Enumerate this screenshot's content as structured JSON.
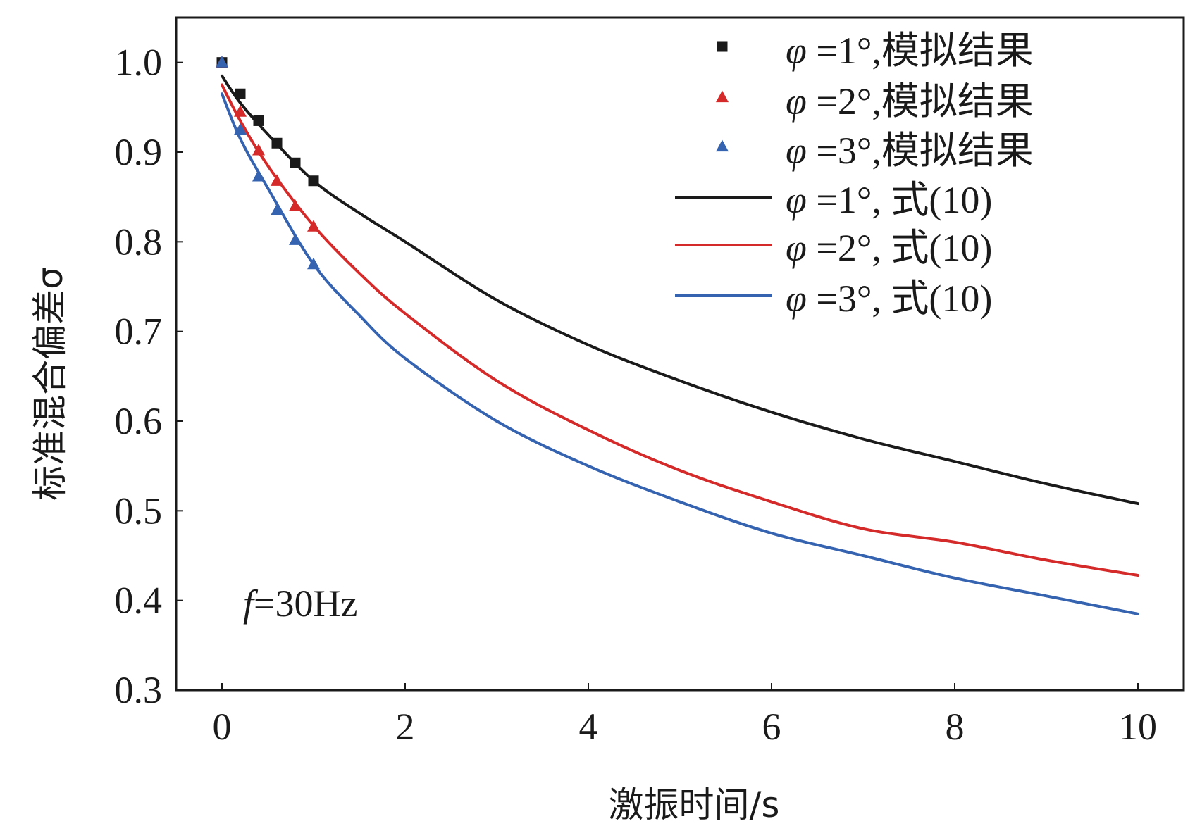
{
  "chart_data": {
    "type": "line",
    "title": "",
    "xlabel": "激振时间/s",
    "ylabel": "标准混合偏差σ",
    "xlim": [
      -0.5,
      10.5
    ],
    "ylim": [
      0.3,
      1.05
    ],
    "x_ticks": [
      0,
      2,
      4,
      6,
      8,
      10
    ],
    "x_tick_labels": [
      "0",
      "2",
      "4",
      "6",
      "8",
      "10"
    ],
    "y_ticks": [
      0.3,
      0.4,
      0.5,
      0.6,
      0.7,
      0.8,
      0.9,
      1.0
    ],
    "y_tick_labels": [
      "0.3",
      "0.4",
      "0.5",
      "0.6",
      "0.7",
      "0.8",
      "0.9",
      "1.0"
    ],
    "grid": false,
    "legend_position": "top-right",
    "annotation": {
      "symbol": "f",
      "text": "=30Hz"
    },
    "series": [
      {
        "name": "φ =1°,模拟结果",
        "symbol": "φ",
        "label": " =1°,模拟结果",
        "kind": "scatter",
        "marker": "square",
        "color": "#1a1a1a",
        "x": [
          0,
          0.2,
          0.4,
          0.6,
          0.8,
          1.0
        ],
        "y": [
          1.0,
          0.965,
          0.935,
          0.91,
          0.888,
          0.868
        ]
      },
      {
        "name": "φ =2°,模拟结果",
        "symbol": "φ",
        "label": " =2°,模拟结果",
        "kind": "scatter",
        "marker": "triangle",
        "color": "#d42a2a",
        "x": [
          0,
          0.2,
          0.4,
          0.6,
          0.8,
          1.0
        ],
        "y": [
          1.0,
          0.945,
          0.902,
          0.868,
          0.84,
          0.817
        ]
      },
      {
        "name": "φ =3°,模拟结果",
        "symbol": "φ",
        "label": " =3°,模拟结果",
        "kind": "scatter",
        "marker": "triangle",
        "color": "#3563b0",
        "x": [
          0,
          0.2,
          0.4,
          0.6,
          0.8,
          1.0
        ],
        "y": [
          1.0,
          0.925,
          0.873,
          0.835,
          0.802,
          0.775
        ]
      },
      {
        "name": "φ =1°, 式(10)",
        "symbol": "φ",
        "label": " =1°, 式(10)",
        "kind": "line",
        "color": "#1a1a1a",
        "x": [
          0,
          0.2,
          0.5,
          1,
          1.5,
          2,
          3,
          4,
          5,
          6,
          7,
          8,
          9,
          10
        ],
        "y": [
          0.985,
          0.955,
          0.92,
          0.868,
          0.832,
          0.8,
          0.735,
          0.685,
          0.645,
          0.61,
          0.58,
          0.555,
          0.53,
          0.508
        ]
      },
      {
        "name": "φ =2°, 式(10)",
        "symbol": "φ",
        "label": " =2°, 式(10)",
        "kind": "line",
        "color": "#d42a2a",
        "x": [
          0,
          0.2,
          0.5,
          1,
          1.5,
          2,
          3,
          4,
          5,
          6,
          7,
          8,
          9,
          10
        ],
        "y": [
          0.975,
          0.935,
          0.885,
          0.818,
          0.765,
          0.72,
          0.645,
          0.59,
          0.545,
          0.51,
          0.48,
          0.465,
          0.445,
          0.428
        ]
      },
      {
        "name": "φ =3°, 式(10)",
        "symbol": "φ",
        "label": " =3°, 式(10)",
        "kind": "line",
        "color": "#3563b0",
        "x": [
          0,
          0.2,
          0.5,
          1,
          1.5,
          2,
          3,
          4,
          5,
          6,
          7,
          8,
          9,
          10
        ],
        "y": [
          0.965,
          0.915,
          0.86,
          0.775,
          0.718,
          0.67,
          0.6,
          0.55,
          0.51,
          0.475,
          0.45,
          0.425,
          0.405,
          0.385
        ]
      }
    ]
  }
}
